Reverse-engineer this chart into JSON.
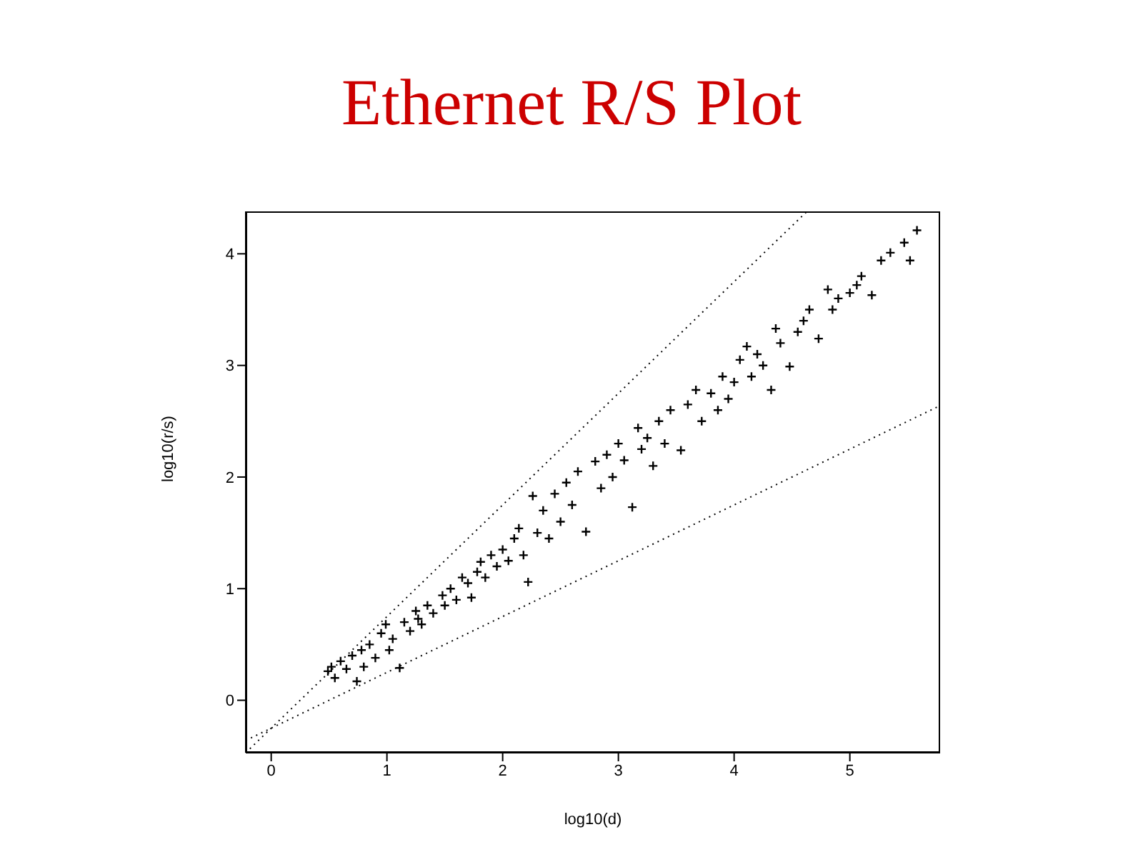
{
  "chart_data": {
    "type": "scatter",
    "title": "Ethernet R/S Plot",
    "xlabel": "log10(d)",
    "ylabel": "log10(r/s)",
    "xlim": [
      -0.22,
      5.78
    ],
    "ylim": [
      -0.47,
      4.38
    ],
    "xticks": [
      0,
      1,
      2,
      3,
      4,
      5
    ],
    "yticks": [
      0,
      1,
      2,
      3,
      4
    ],
    "series": [
      {
        "marker": "cross",
        "color": "#000000",
        "x": [
          0.49,
          0.52,
          0.55,
          0.6,
          0.65,
          0.7,
          0.74,
          0.78,
          0.8,
          0.85,
          0.9,
          0.95,
          0.99,
          1.02,
          1.05,
          1.11,
          1.15,
          1.2,
          1.25,
          1.27,
          1.3,
          1.35,
          1.4,
          1.48,
          1.5,
          1.55,
          1.6,
          1.65,
          1.7,
          1.73,
          1.78,
          1.81,
          1.85,
          1.9,
          1.95,
          2.0,
          2.05,
          2.1,
          2.14,
          2.18,
          2.22,
          2.26,
          2.3,
          2.35,
          2.4,
          2.45,
          2.5,
          2.55,
          2.6,
          2.65,
          2.72,
          2.8,
          2.85,
          2.9,
          2.95,
          3.0,
          3.05,
          3.12,
          3.17,
          3.2,
          3.25,
          3.3,
          3.35,
          3.4,
          3.45,
          3.54,
          3.6,
          3.67,
          3.72,
          3.8,
          3.86,
          3.9,
          3.95,
          4.0,
          4.05,
          4.11,
          4.15,
          4.2,
          4.25,
          4.32,
          4.36,
          4.4,
          4.48,
          4.55,
          4.6,
          4.65,
          4.73,
          4.81,
          4.85,
          4.9,
          5.0,
          5.06,
          5.1,
          5.19,
          5.27,
          5.35,
          5.47,
          5.52,
          5.58
        ],
        "values": [
          0.26,
          0.3,
          0.2,
          0.35,
          0.28,
          0.4,
          0.17,
          0.45,
          0.3,
          0.5,
          0.38,
          0.6,
          0.68,
          0.45,
          0.55,
          0.29,
          0.7,
          0.62,
          0.8,
          0.73,
          0.68,
          0.85,
          0.78,
          0.94,
          0.85,
          1.0,
          0.9,
          1.1,
          1.05,
          0.92,
          1.15,
          1.24,
          1.1,
          1.3,
          1.2,
          1.35,
          1.25,
          1.45,
          1.54,
          1.3,
          1.06,
          1.83,
          1.5,
          1.7,
          1.45,
          1.85,
          1.6,
          1.95,
          1.75,
          2.05,
          1.51,
          2.14,
          1.9,
          2.2,
          2.0,
          2.3,
          2.15,
          1.73,
          2.44,
          2.25,
          2.35,
          2.1,
          2.5,
          2.3,
          2.6,
          2.24,
          2.65,
          2.78,
          2.5,
          2.75,
          2.6,
          2.9,
          2.7,
          2.85,
          3.05,
          3.17,
          2.9,
          3.1,
          3.0,
          2.78,
          3.33,
          3.2,
          2.99,
          3.3,
          3.4,
          3.5,
          3.24,
          3.68,
          3.5,
          3.6,
          3.65,
          3.72,
          3.8,
          3.63,
          3.94,
          4.01,
          4.1,
          3.94,
          4.21
        ]
      },
      {
        "type": "line",
        "line_style": "dotted",
        "color": "#000000",
        "x": [
          -0.22,
          4.63
        ],
        "values": [
          -0.47,
          4.38
        ]
      },
      {
        "type": "line",
        "line_style": "dotted",
        "color": "#000000",
        "x": [
          -0.22,
          5.78
        ],
        "values": [
          -0.36,
          2.64
        ]
      }
    ]
  }
}
